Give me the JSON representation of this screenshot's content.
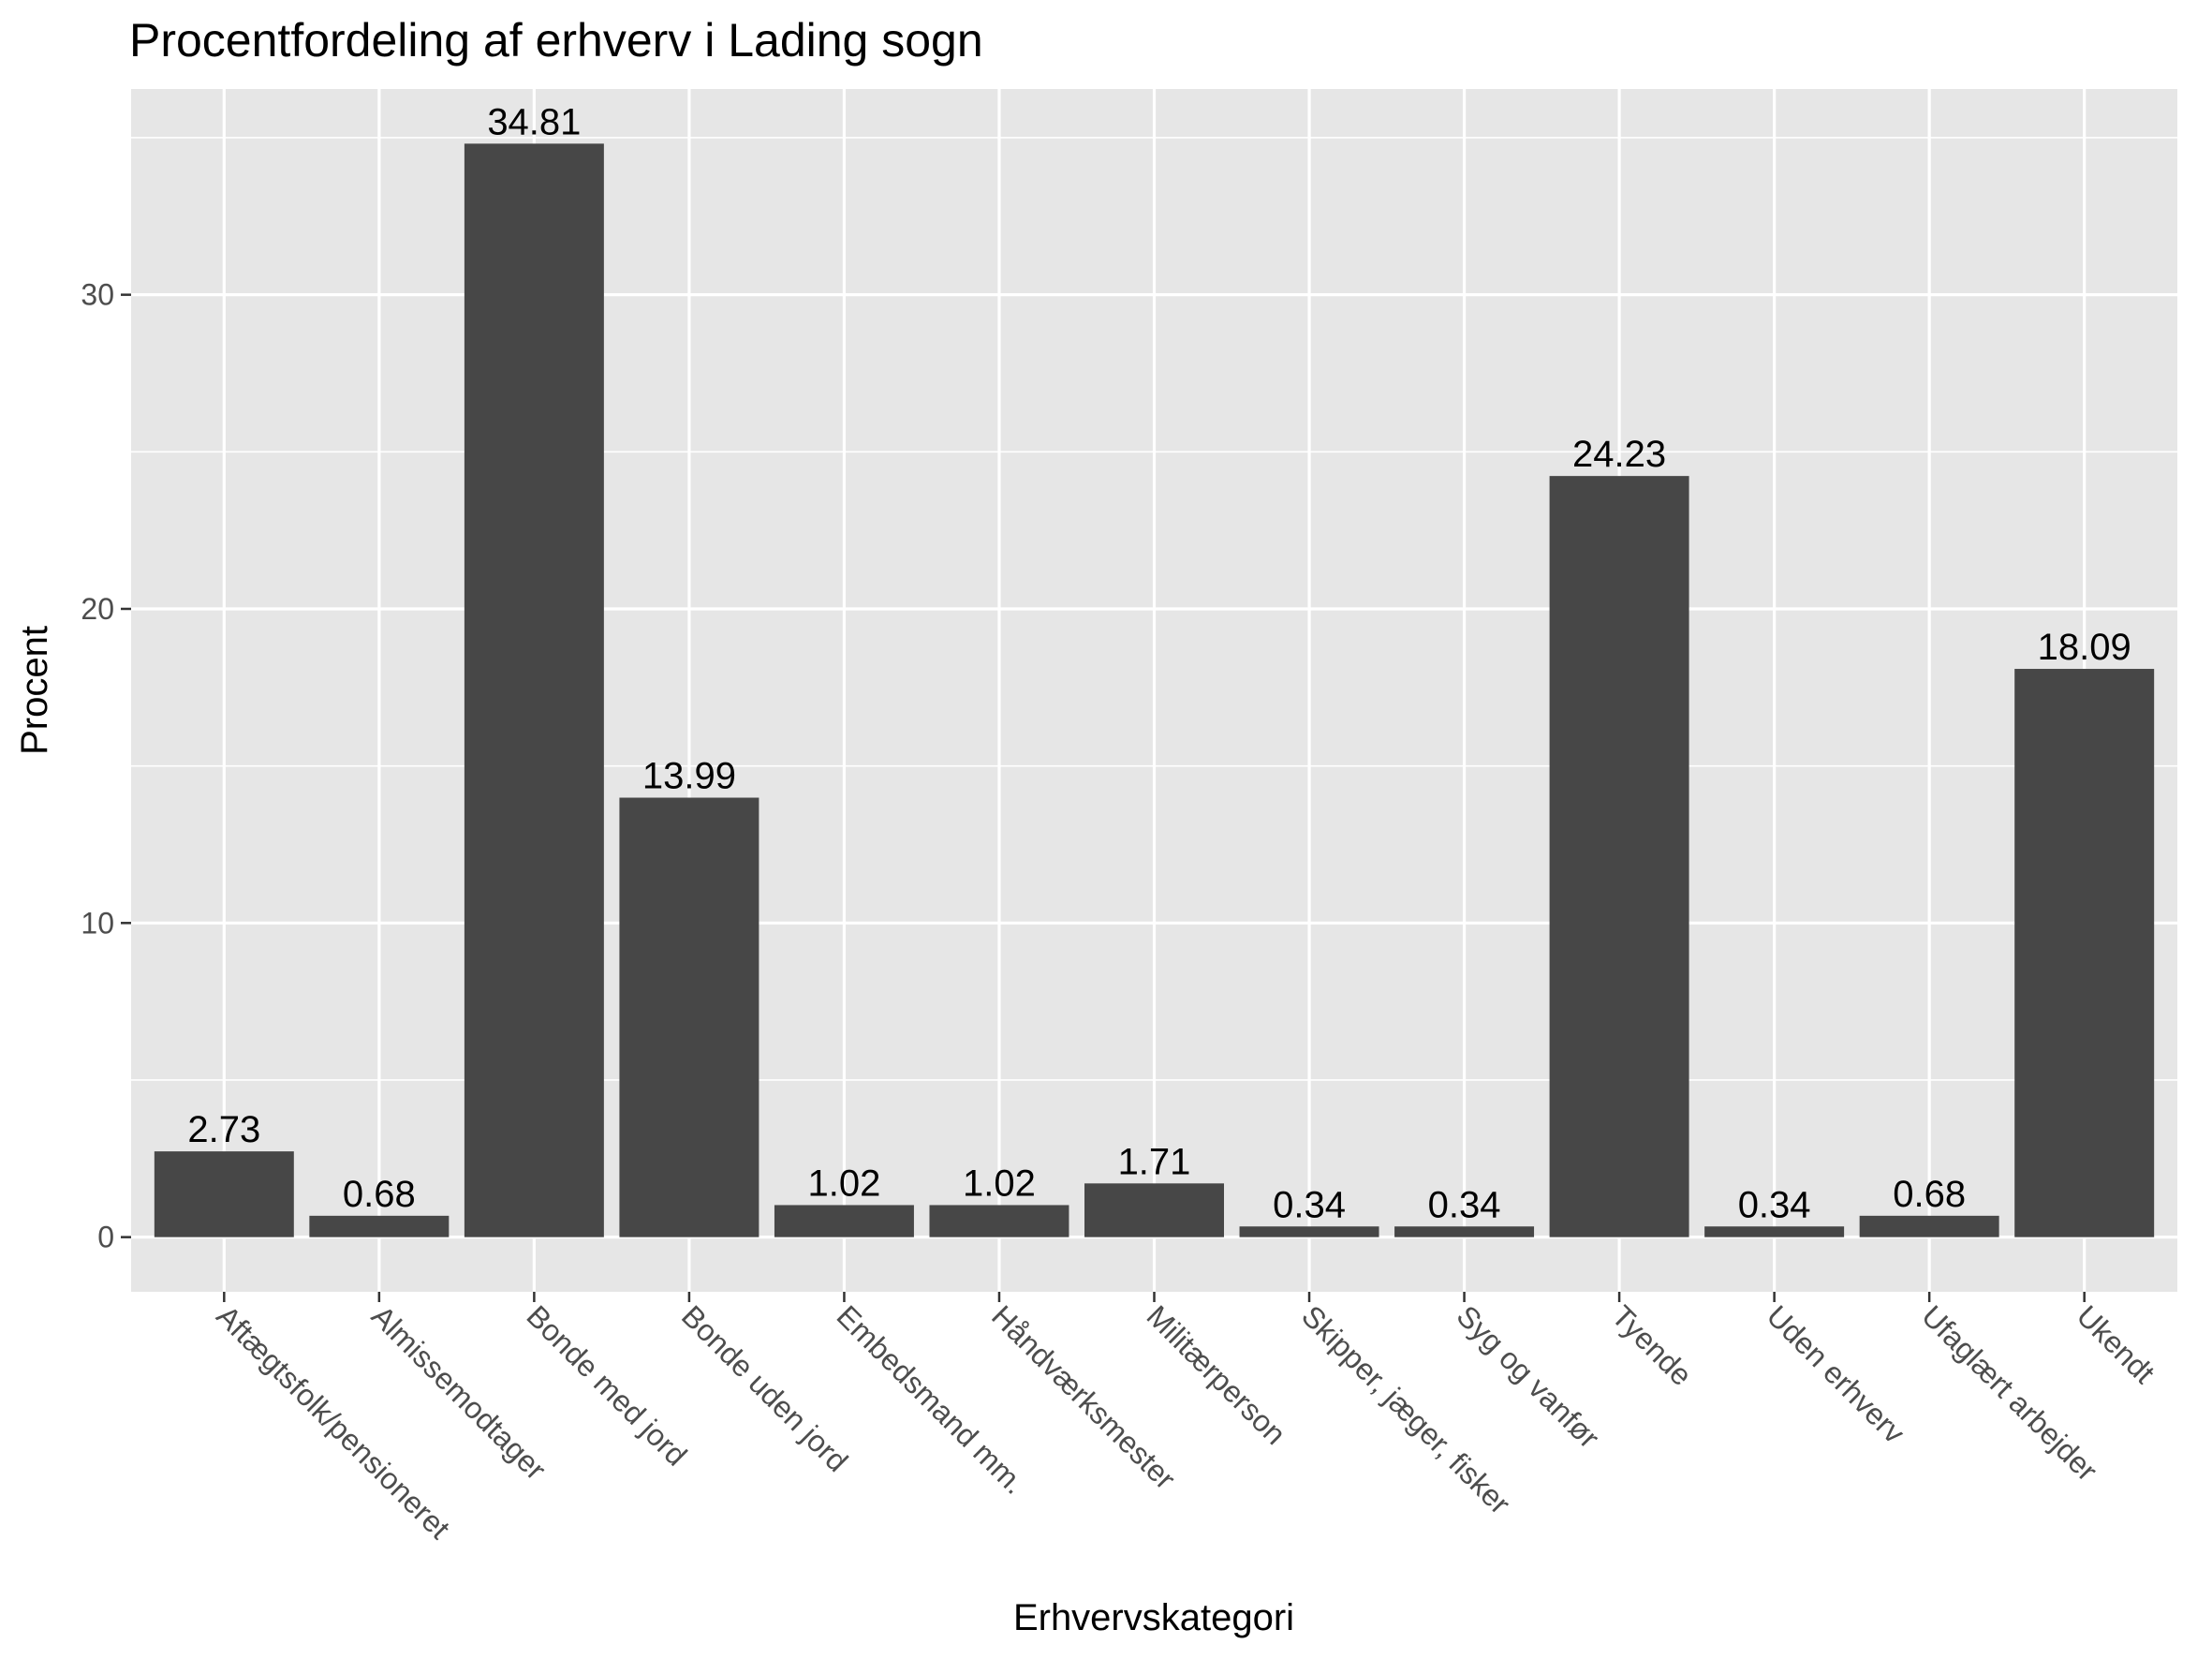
{
  "chart_data": {
    "type": "bar",
    "title": "Procentfordeling af erhverv i Lading sogn",
    "xlabel": "Erhvervskategori",
    "ylabel": "Procent",
    "ylim": [
      -1.74,
      36.55
    ],
    "yticks": [
      0,
      10,
      20,
      30
    ],
    "grid": true,
    "legend": "none",
    "colors": {
      "bar": "#474747",
      "panel": "#e6e6e6",
      "grid": "#ffffff",
      "tick_text": "#4d4d4d"
    },
    "categories": [
      "Aftægtsfolk/pensioneret",
      "Almissemodtager",
      "Bonde med jord",
      "Bonde uden jord",
      "Embedsmand mm.",
      "Håndværksmester",
      "Militærperson",
      "Skipper, jæger, fisker",
      "Syg og vanfør",
      "Tyende",
      "Uden erhverv",
      "Ufaglært arbejder",
      "Ukendt"
    ],
    "values": [
      2.73,
      0.68,
      34.81,
      13.99,
      1.02,
      1.02,
      1.71,
      0.34,
      0.34,
      24.23,
      0.34,
      0.68,
      18.09
    ],
    "data_labels": [
      "2.73",
      "0.68",
      "34.81",
      "13.99",
      "1.02",
      "1.02",
      "1.71",
      "0.34",
      "0.34",
      "24.23",
      "0.34",
      "0.68",
      "18.09"
    ]
  }
}
